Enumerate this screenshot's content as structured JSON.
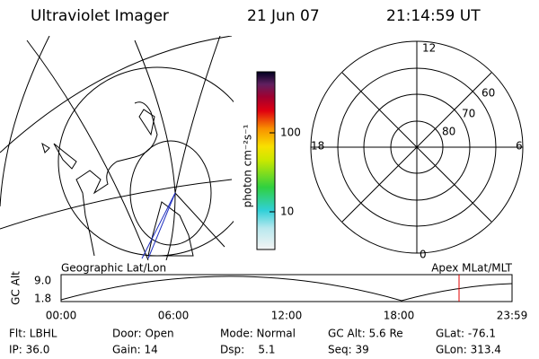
{
  "header": {
    "title": "Ultraviolet Imager",
    "date": "21 Jun 07",
    "time": "21:14:59 UT"
  },
  "colorbar": {
    "label": "photon cm⁻²s⁻¹",
    "ticks": [
      "100",
      "10"
    ]
  },
  "polar_plot": {
    "mlt_labels": [
      "12",
      "18",
      "6",
      "0"
    ],
    "lat_labels": [
      "60",
      "70",
      "80"
    ]
  },
  "altitude_plot": {
    "left_title": "Geographic Lat/Lon",
    "right_title": "Apex MLat/MLT",
    "axis_label": "GC Alt",
    "y_labels": [
      "9.0",
      "1.8"
    ],
    "time_labels": [
      "00:00",
      "06:00",
      "12:00",
      "18:00",
      "23:59"
    ]
  },
  "info": {
    "row1": [
      "Flt: LBHL",
      "Door: Open",
      "Mode: Normal",
      "GC Alt: 5.6 Re",
      "GLat: -76.1"
    ],
    "row2": [
      "IP: 36.0",
      "Gain: 14",
      "Dsp:    5.1",
      "Seq: 39",
      "GLon: 313.4"
    ]
  }
}
